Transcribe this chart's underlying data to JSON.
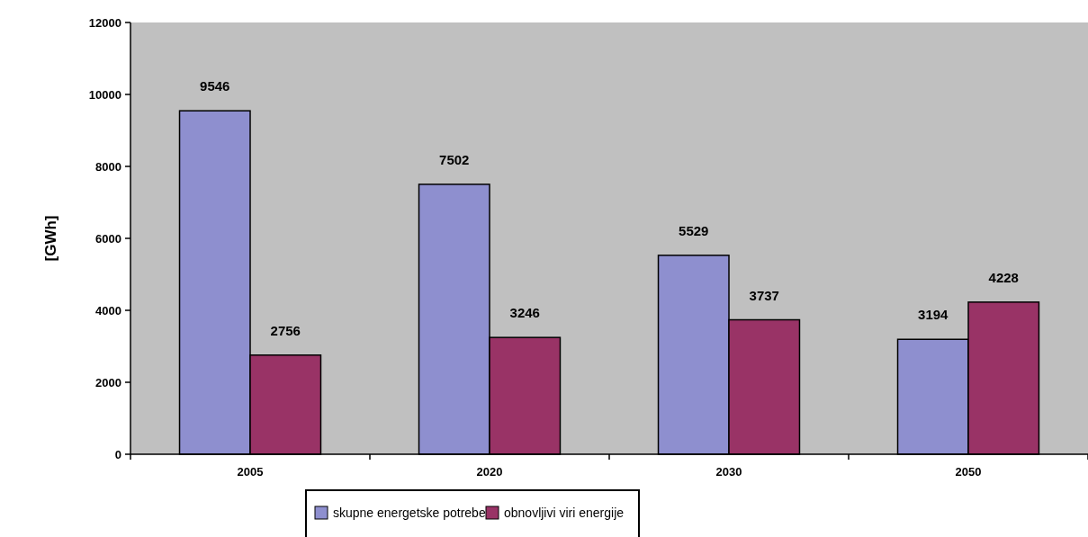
{
  "chart_data": {
    "type": "bar",
    "ylabel": "[GWh]",
    "categories": [
      "2005",
      "2020",
      "2030",
      "2050"
    ],
    "series": [
      {
        "name": "skupne energetske potrebe",
        "color": "#8e8fcf",
        "values": [
          9546,
          7502,
          5529,
          3194
        ]
      },
      {
        "name": "obnovljivi viri energije",
        "color": "#993366",
        "values": [
          2756,
          3246,
          3737,
          4228
        ]
      }
    ],
    "ylim": [
      0,
      12000
    ],
    "yticks": [
      0,
      2000,
      4000,
      6000,
      8000,
      10000,
      12000
    ],
    "data_labels": true,
    "grid": false,
    "legend": "bottom"
  }
}
